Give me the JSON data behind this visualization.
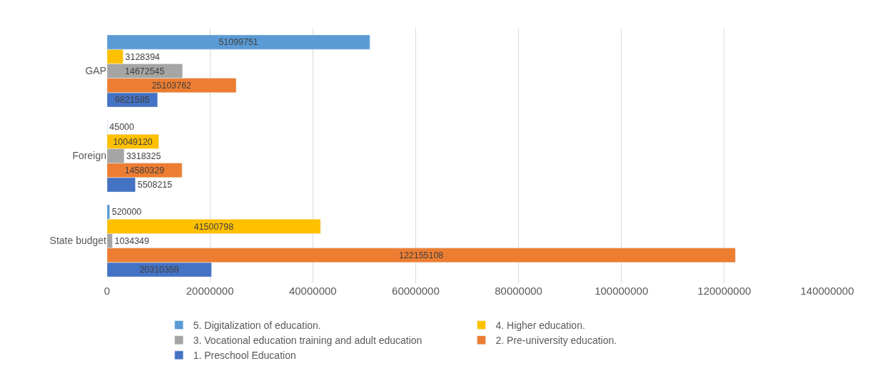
{
  "chart_data": {
    "type": "bar",
    "orientation": "horizontal",
    "categories": [
      "GAP",
      "Foreign",
      "State budget"
    ],
    "series": [
      {
        "name": "1. Preschool Education",
        "color": "#4472c4",
        "values": [
          9821585,
          5508215,
          20310359
        ]
      },
      {
        "name": "2. Pre-university education.",
        "color": "#ed7d31",
        "values": [
          25103762,
          14580329,
          122155108
        ]
      },
      {
        "name": "3. Vocational education training and adult education",
        "color": "#a5a5a5",
        "values": [
          14672545,
          3318325,
          1034349
        ]
      },
      {
        "name": "4. Higher education.",
        "color": "#ffc000",
        "values": [
          3128394,
          10049120,
          41500798
        ]
      },
      {
        "name": "5. Digitalization of education.",
        "color": "#5b9bd5",
        "values": [
          51099751,
          45000,
          520000
        ]
      }
    ],
    "xlim": [
      0,
      140000000
    ],
    "xticks": [
      0,
      20000000,
      40000000,
      60000000,
      80000000,
      100000000,
      120000000,
      140000000
    ],
    "grid": "x",
    "legend": "bottom",
    "data_labels": true
  }
}
